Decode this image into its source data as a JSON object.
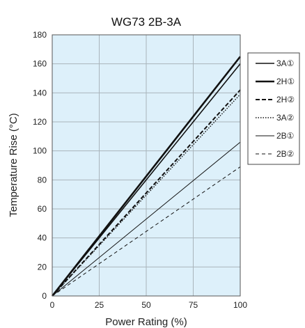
{
  "chart_data": {
    "type": "line",
    "title": "WG73 2B-3A",
    "xlabel": "Power Rating (%)",
    "ylabel": "Temperature Rise (°C)",
    "xlim": [
      0,
      100
    ],
    "ylim": [
      0,
      180
    ],
    "xticks": [
      0,
      25,
      50,
      75,
      100
    ],
    "yticks": [
      0,
      20,
      40,
      60,
      80,
      100,
      120,
      140,
      160,
      180
    ],
    "grid": true,
    "background_color": "#ddf0fa",
    "grid_color": "#a9b4bb",
    "line_color": "#111111",
    "legend_position": "right",
    "x": [
      0,
      100
    ],
    "series": [
      {
        "name": "3A①",
        "values": [
          0,
          160
        ],
        "style": "solid",
        "width": 1.6
      },
      {
        "name": "2H①",
        "values": [
          0,
          165
        ],
        "style": "solid",
        "width": 2.6
      },
      {
        "name": "2H②",
        "values": [
          0,
          142
        ],
        "style": "dashed",
        "width": 2
      },
      {
        "name": "3A②",
        "values": [
          0,
          139
        ],
        "style": "dotted",
        "width": 1.4
      },
      {
        "name": "2B①",
        "values": [
          0,
          106
        ],
        "style": "solid",
        "width": 1
      },
      {
        "name": "2B②",
        "values": [
          0,
          89
        ],
        "style": "dashed-thin",
        "width": 1
      }
    ]
  }
}
